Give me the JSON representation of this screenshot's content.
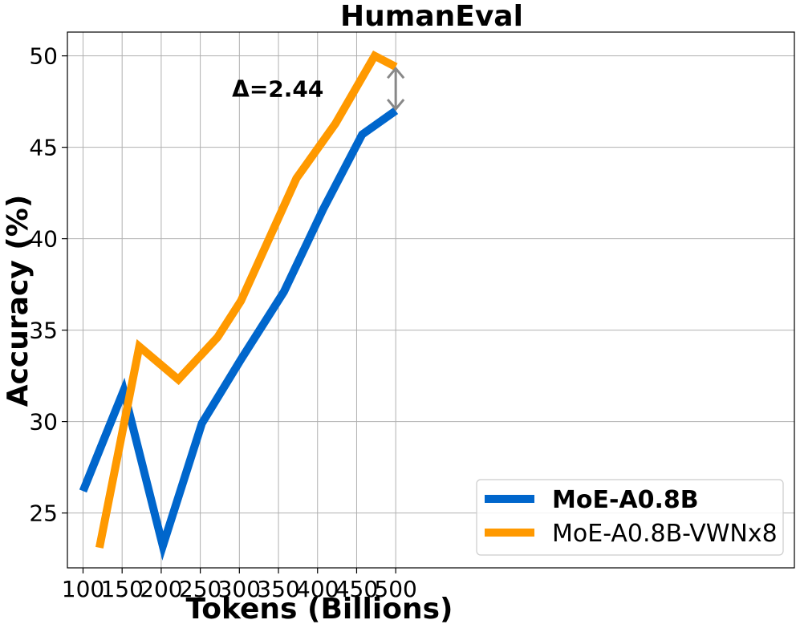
{
  "chart_data": {
    "type": "line",
    "title": "HumanEval",
    "xlabel": "Tokens (Billions)",
    "ylabel": "Accuracy (%)",
    "xlim": [
      80,
      1010
    ],
    "ylim": [
      22.0,
      51.3
    ],
    "xticks": [
      100,
      150,
      200,
      250,
      300,
      350,
      400,
      450,
      500
    ],
    "yticks": [
      25,
      30,
      35,
      40,
      45,
      50
    ],
    "grid": true,
    "legend_position": "lower-right",
    "series": [
      {
        "name": "MoE-A0.8B",
        "color": "#0066CC",
        "legend_bold": true,
        "x": [
          100,
          152,
          202,
          252,
          302,
          357,
          407,
          457,
          500
        ],
        "y": [
          26.2,
          31.7,
          23.2,
          29.9,
          33.4,
          37.1,
          41.6,
          45.7,
          47.0
        ]
      },
      {
        "name": "MoE-A0.8B-VWNx8",
        "color": "#FF9900",
        "legend_bold": false,
        "x": [
          121,
          172,
          222,
          272,
          302,
          373,
          423,
          473,
          500
        ],
        "y": [
          23.1,
          34.1,
          32.3,
          34.6,
          36.6,
          43.3,
          46.3,
          50.0,
          49.4
        ]
      }
    ],
    "annotation": {
      "text": "Δ=2.44",
      "x": 500,
      "y_top": 49.4,
      "y_bottom": 47.0,
      "arrow_color": "#888888"
    }
  }
}
